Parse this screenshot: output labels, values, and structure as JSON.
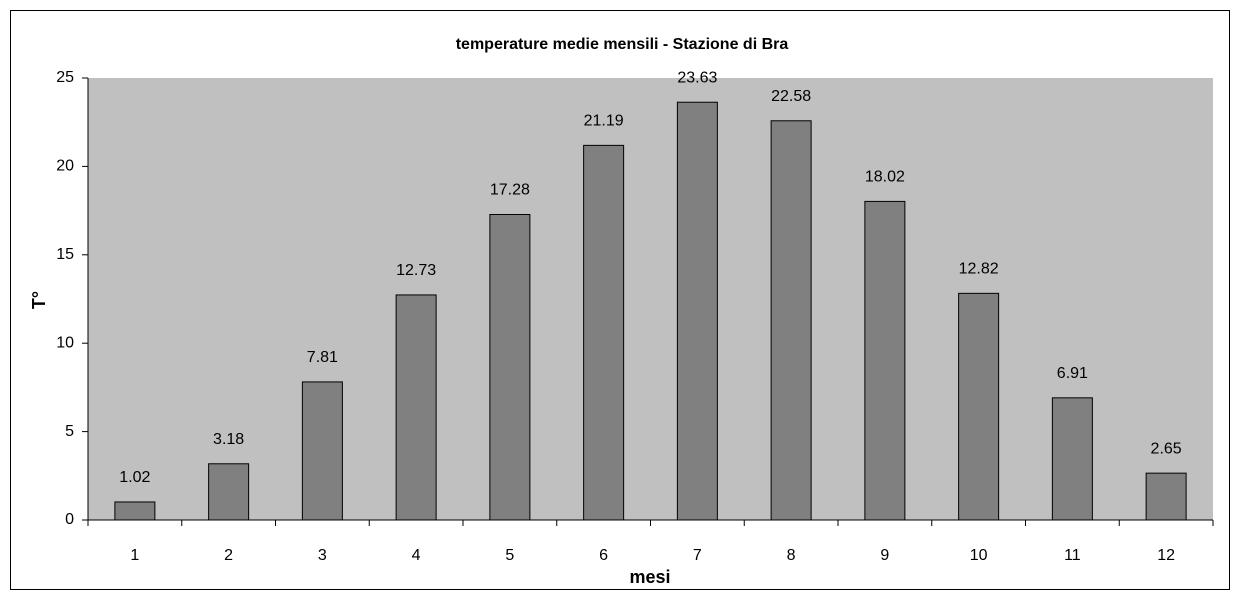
{
  "chart_data": {
    "type": "bar",
    "title": "temperature medie mensili - Stazione di Bra",
    "x_label": "mesi",
    "y_label": "T°",
    "categories": [
      "1",
      "2",
      "3",
      "4",
      "5",
      "6",
      "7",
      "8",
      "9",
      "10",
      "11",
      "12"
    ],
    "values": [
      1.02,
      3.18,
      7.81,
      12.73,
      17.28,
      21.19,
      23.63,
      22.58,
      18.02,
      12.82,
      6.91,
      2.65
    ],
    "color": "#808080",
    "plot_background": "#c0c0c0",
    "ylim": [
      0,
      25
    ],
    "yticks": [
      0,
      5,
      10,
      15,
      20,
      25
    ],
    "grid": false
  }
}
